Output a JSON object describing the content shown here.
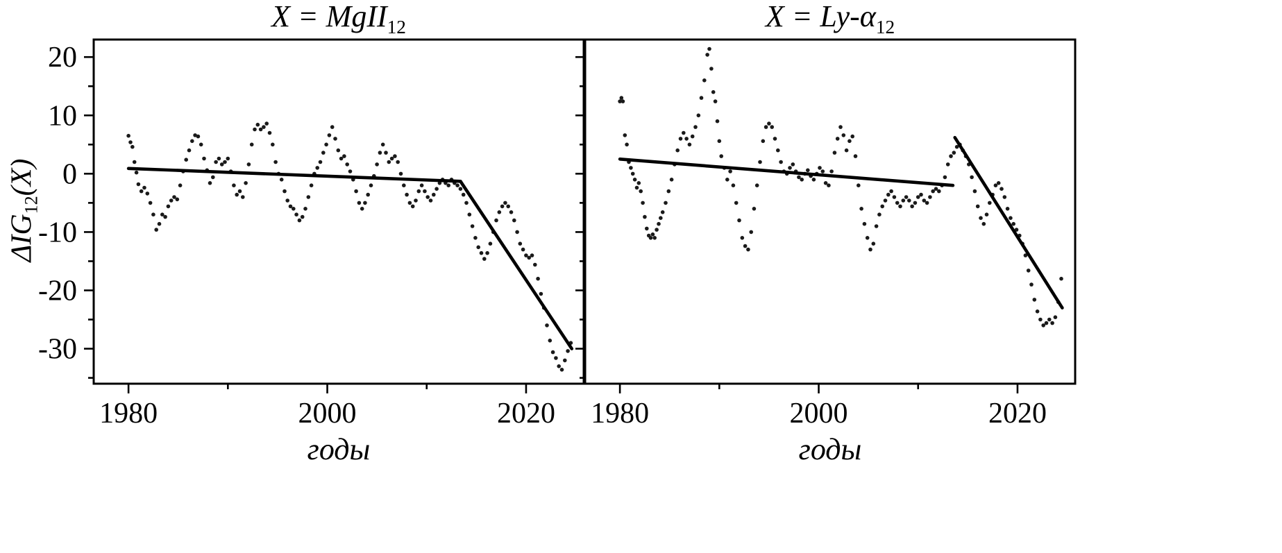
{
  "figure": {
    "background": "#ffffff",
    "axis_color": "#000000",
    "point_color": "#1a1a1a",
    "trend_color": "#000000",
    "ylabel": {
      "main": "ΔIG",
      "subscript": "12",
      "suffix": "(X)"
    }
  },
  "chart_data": [
    {
      "type": "scatter",
      "title": {
        "text": "X = MgII",
        "subscript": "12"
      },
      "xlabel": "годы",
      "ylabel": "ΔIG12(X)",
      "xlim": [
        1976.5,
        2025.8
      ],
      "ylim": [
        -36,
        23
      ],
      "xticks": [
        1980,
        2000,
        2020
      ],
      "xminor": [
        1990,
        2010
      ],
      "yticks": [
        -30,
        -20,
        -10,
        0,
        10,
        20
      ],
      "yminor": [
        -35,
        -25,
        -15,
        -5,
        5,
        15
      ],
      "show_ytick_labels": true,
      "grid": false,
      "legend": "none",
      "points": [
        [
          1980.0,
          6.5
        ],
        [
          1980.2,
          5.4
        ],
        [
          1980.4,
          4.6
        ],
        [
          1980.6,
          2.0
        ],
        [
          1980.8,
          0.2
        ],
        [
          1981.0,
          -1.8
        ],
        [
          1981.3,
          -3.0
        ],
        [
          1981.6,
          -2.4
        ],
        [
          1981.9,
          -3.4
        ],
        [
          1982.2,
          -5.0
        ],
        [
          1982.5,
          -7.0
        ],
        [
          1982.8,
          -9.6
        ],
        [
          1983.1,
          -8.6
        ],
        [
          1983.4,
          -7.0
        ],
        [
          1983.7,
          -7.4
        ],
        [
          1984.0,
          -5.6
        ],
        [
          1984.3,
          -4.6
        ],
        [
          1984.6,
          -4.0
        ],
        [
          1984.9,
          -4.4
        ],
        [
          1985.2,
          -2.0
        ],
        [
          1985.5,
          0.4
        ],
        [
          1985.8,
          2.4
        ],
        [
          1986.1,
          4.0
        ],
        [
          1986.4,
          5.6
        ],
        [
          1986.7,
          6.6
        ],
        [
          1987.0,
          6.4
        ],
        [
          1987.3,
          5.0
        ],
        [
          1987.6,
          2.6
        ],
        [
          1987.9,
          0.6
        ],
        [
          1988.2,
          -1.6
        ],
        [
          1988.5,
          -0.6
        ],
        [
          1988.8,
          2.0
        ],
        [
          1989.1,
          2.6
        ],
        [
          1989.4,
          1.6
        ],
        [
          1989.7,
          2.0
        ],
        [
          1990.0,
          2.6
        ],
        [
          1990.3,
          0.4
        ],
        [
          1990.6,
          -2.0
        ],
        [
          1990.9,
          -3.6
        ],
        [
          1991.2,
          -3.0
        ],
        [
          1991.5,
          -4.0
        ],
        [
          1991.8,
          -1.6
        ],
        [
          1992.1,
          1.6
        ],
        [
          1992.4,
          5.0
        ],
        [
          1992.7,
          7.6
        ],
        [
          1993.0,
          8.4
        ],
        [
          1993.3,
          7.6
        ],
        [
          1993.6,
          8.0
        ],
        [
          1993.9,
          8.6
        ],
        [
          1994.2,
          7.0
        ],
        [
          1994.5,
          5.0
        ],
        [
          1994.8,
          2.0
        ],
        [
          1995.1,
          0.0
        ],
        [
          1995.4,
          -1.0
        ],
        [
          1995.7,
          -3.0
        ],
        [
          1996.0,
          -4.6
        ],
        [
          1996.3,
          -5.6
        ],
        [
          1996.6,
          -6.0
        ],
        [
          1996.9,
          -7.0
        ],
        [
          1997.2,
          -8.0
        ],
        [
          1997.5,
          -7.4
        ],
        [
          1997.8,
          -6.0
        ],
        [
          1998.1,
          -4.0
        ],
        [
          1998.4,
          -2.0
        ],
        [
          1998.7,
          0.0
        ],
        [
          1999.0,
          1.0
        ],
        [
          1999.3,
          2.0
        ],
        [
          1999.6,
          3.6
        ],
        [
          1999.9,
          5.0
        ],
        [
          2000.2,
          6.6
        ],
        [
          2000.5,
          8.0
        ],
        [
          2000.8,
          6.0
        ],
        [
          2001.1,
          4.0
        ],
        [
          2001.4,
          2.6
        ],
        [
          2001.7,
          3.0
        ],
        [
          2002.0,
          1.6
        ],
        [
          2002.3,
          0.4
        ],
        [
          2002.6,
          -1.0
        ],
        [
          2002.9,
          -3.0
        ],
        [
          2003.2,
          -5.0
        ],
        [
          2003.5,
          -6.0
        ],
        [
          2003.8,
          -5.0
        ],
        [
          2004.1,
          -3.6
        ],
        [
          2004.4,
          -2.0
        ],
        [
          2004.7,
          -0.4
        ],
        [
          2005.0,
          1.6
        ],
        [
          2005.3,
          3.6
        ],
        [
          2005.6,
          5.0
        ],
        [
          2005.9,
          3.6
        ],
        [
          2006.2,
          2.0
        ],
        [
          2006.5,
          2.6
        ],
        [
          2006.8,
          3.0
        ],
        [
          2007.1,
          2.0
        ],
        [
          2007.4,
          0.0
        ],
        [
          2007.7,
          -2.0
        ],
        [
          2008.0,
          -3.6
        ],
        [
          2008.3,
          -5.0
        ],
        [
          2008.6,
          -5.6
        ],
        [
          2008.9,
          -4.6
        ],
        [
          2009.2,
          -3.0
        ],
        [
          2009.5,
          -2.0
        ],
        [
          2009.8,
          -3.0
        ],
        [
          2010.1,
          -4.0
        ],
        [
          2010.4,
          -4.6
        ],
        [
          2010.7,
          -3.6
        ],
        [
          2011.0,
          -2.6
        ],
        [
          2011.3,
          -1.6
        ],
        [
          2011.6,
          -1.0
        ],
        [
          2011.9,
          -1.6
        ],
        [
          2012.2,
          -2.0
        ],
        [
          2012.5,
          -1.0
        ],
        [
          2012.8,
          -1.6
        ],
        [
          2013.1,
          -2.0
        ],
        [
          2013.4,
          -2.6
        ],
        [
          2013.7,
          -3.6
        ],
        [
          2014.0,
          -5.0
        ],
        [
          2014.3,
          -7.0
        ],
        [
          2014.6,
          -9.0
        ],
        [
          2014.9,
          -11.0
        ],
        [
          2015.2,
          -12.6
        ],
        [
          2015.5,
          -13.6
        ],
        [
          2015.8,
          -14.6
        ],
        [
          2016.1,
          -13.6
        ],
        [
          2016.4,
          -12.0
        ],
        [
          2016.7,
          -10.0
        ],
        [
          2017.0,
          -8.0
        ],
        [
          2017.3,
          -6.6
        ],
        [
          2017.6,
          -5.6
        ],
        [
          2017.9,
          -5.0
        ],
        [
          2018.2,
          -5.6
        ],
        [
          2018.5,
          -6.6
        ],
        [
          2018.8,
          -8.0
        ],
        [
          2019.1,
          -10.0
        ],
        [
          2019.4,
          -12.0
        ],
        [
          2019.7,
          -13.0
        ],
        [
          2020.0,
          -14.0
        ],
        [
          2020.3,
          -14.4
        ],
        [
          2020.6,
          -14.0
        ],
        [
          2020.9,
          -15.6
        ],
        [
          2021.2,
          -18.0
        ],
        [
          2021.5,
          -20.6
        ],
        [
          2021.8,
          -23.0
        ],
        [
          2022.1,
          -26.0
        ],
        [
          2022.4,
          -28.6
        ],
        [
          2022.7,
          -30.6
        ],
        [
          2023.0,
          -31.6
        ],
        [
          2023.3,
          -33.0
        ],
        [
          2023.6,
          -33.6
        ],
        [
          2023.9,
          -32.0
        ],
        [
          2024.2,
          -30.4
        ],
        [
          2024.5,
          -29.0
        ]
      ],
      "trend_segments": [
        [
          [
            1980.0,
            0.9
          ],
          [
            2013.4,
            -1.3
          ]
        ],
        [
          [
            2013.4,
            -1.3
          ],
          [
            2024.6,
            -30.0
          ]
        ]
      ]
    },
    {
      "type": "scatter",
      "title": {
        "text": "X = Ly-α",
        "subscript": "12"
      },
      "xlabel": "годы",
      "ylabel": "ΔIG12(X)",
      "xlim": [
        1976.5,
        2025.8
      ],
      "ylim": [
        -36,
        23
      ],
      "xticks": [
        1980,
        2000,
        2020
      ],
      "xminor": [
        1990,
        2010
      ],
      "yticks": [
        -30,
        -20,
        -10,
        0,
        10,
        20
      ],
      "yminor": [
        -35,
        -25,
        -15,
        -5,
        5,
        15
      ],
      "show_ytick_labels": false,
      "grid": false,
      "legend": "none",
      "points": [
        [
          1980.0,
          12.4
        ],
        [
          1980.15,
          13.0
        ],
        [
          1980.3,
          12.4
        ],
        [
          1980.5,
          6.6
        ],
        [
          1980.7,
          5.0
        ],
        [
          1980.9,
          2.0
        ],
        [
          1981.1,
          1.0
        ],
        [
          1981.3,
          0.0
        ],
        [
          1981.5,
          -1.0
        ],
        [
          1981.7,
          -2.4
        ],
        [
          1981.9,
          -1.6
        ],
        [
          1982.1,
          -3.0
        ],
        [
          1982.3,
          -5.0
        ],
        [
          1982.5,
          -7.4
        ],
        [
          1982.7,
          -9.4
        ],
        [
          1982.9,
          -10.6
        ],
        [
          1983.1,
          -11.0
        ],
        [
          1983.3,
          -10.4
        ],
        [
          1983.5,
          -11.0
        ],
        [
          1983.7,
          -9.6
        ],
        [
          1983.9,
          -8.6
        ],
        [
          1984.1,
          -7.6
        ],
        [
          1984.3,
          -6.6
        ],
        [
          1984.6,
          -5.0
        ],
        [
          1984.9,
          -3.0
        ],
        [
          1985.2,
          -1.0
        ],
        [
          1985.5,
          1.6
        ],
        [
          1985.8,
          4.0
        ],
        [
          1986.1,
          6.0
        ],
        [
          1986.4,
          7.0
        ],
        [
          1986.7,
          6.0
        ],
        [
          1987.0,
          5.0
        ],
        [
          1987.3,
          6.4
        ],
        [
          1987.6,
          8.0
        ],
        [
          1987.9,
          10.0
        ],
        [
          1988.2,
          13.0
        ],
        [
          1988.5,
          16.0
        ],
        [
          1988.8,
          20.4
        ],
        [
          1989.0,
          21.4
        ],
        [
          1989.2,
          18.0
        ],
        [
          1989.4,
          14.0
        ],
        [
          1989.6,
          12.4
        ],
        [
          1989.8,
          9.0
        ],
        [
          1990.0,
          5.6
        ],
        [
          1990.2,
          3.0
        ],
        [
          1990.5,
          1.0
        ],
        [
          1990.8,
          -1.0
        ],
        [
          1991.1,
          0.4
        ],
        [
          1991.4,
          -2.0
        ],
        [
          1991.7,
          -5.0
        ],
        [
          1992.0,
          -8.0
        ],
        [
          1992.3,
          -11.0
        ],
        [
          1992.6,
          -12.4
        ],
        [
          1992.9,
          -13.0
        ],
        [
          1993.2,
          -10.0
        ],
        [
          1993.5,
          -6.0
        ],
        [
          1993.8,
          -2.0
        ],
        [
          1994.1,
          2.0
        ],
        [
          1994.4,
          5.6
        ],
        [
          1994.7,
          8.0
        ],
        [
          1995.0,
          8.6
        ],
        [
          1995.3,
          8.0
        ],
        [
          1995.6,
          6.0
        ],
        [
          1995.9,
          4.0
        ],
        [
          1996.2,
          2.0
        ],
        [
          1996.5,
          0.4
        ],
        [
          1996.8,
          0.0
        ],
        [
          1997.1,
          1.0
        ],
        [
          1997.4,
          1.6
        ],
        [
          1997.7,
          0.4
        ],
        [
          1998.0,
          -0.6
        ],
        [
          1998.3,
          -1.0
        ],
        [
          1998.6,
          0.0
        ],
        [
          1998.9,
          0.6
        ],
        [
          1999.2,
          -0.4
        ],
        [
          1999.5,
          -1.0
        ],
        [
          1999.8,
          0.0
        ],
        [
          2000.1,
          1.0
        ],
        [
          2000.4,
          0.4
        ],
        [
          2000.7,
          -1.6
        ],
        [
          2001.0,
          -2.0
        ],
        [
          2001.3,
          0.4
        ],
        [
          2001.6,
          3.6
        ],
        [
          2001.9,
          6.0
        ],
        [
          2002.2,
          8.0
        ],
        [
          2002.5,
          6.6
        ],
        [
          2002.8,
          4.0
        ],
        [
          2003.1,
          5.6
        ],
        [
          2003.4,
          6.4
        ],
        [
          2003.7,
          3.0
        ],
        [
          2004.0,
          -2.0
        ],
        [
          2004.3,
          -6.0
        ],
        [
          2004.6,
          -8.6
        ],
        [
          2004.9,
          -11.0
        ],
        [
          2005.2,
          -13.0
        ],
        [
          2005.5,
          -12.0
        ],
        [
          2005.8,
          -9.0
        ],
        [
          2006.1,
          -7.0
        ],
        [
          2006.4,
          -5.6
        ],
        [
          2006.7,
          -4.6
        ],
        [
          2007.0,
          -3.6
        ],
        [
          2007.3,
          -3.0
        ],
        [
          2007.6,
          -4.0
        ],
        [
          2007.9,
          -5.0
        ],
        [
          2008.2,
          -5.6
        ],
        [
          2008.5,
          -4.6
        ],
        [
          2008.8,
          -4.0
        ],
        [
          2009.1,
          -4.6
        ],
        [
          2009.4,
          -5.6
        ],
        [
          2009.7,
          -5.0
        ],
        [
          2010.0,
          -4.0
        ],
        [
          2010.3,
          -3.6
        ],
        [
          2010.6,
          -4.6
        ],
        [
          2010.9,
          -5.0
        ],
        [
          2011.2,
          -4.0
        ],
        [
          2011.5,
          -3.0
        ],
        [
          2011.8,
          -2.6
        ],
        [
          2012.1,
          -3.0
        ],
        [
          2012.4,
          -2.0
        ],
        [
          2012.7,
          -0.6
        ],
        [
          2013.0,
          1.6
        ],
        [
          2013.3,
          3.0
        ],
        [
          2013.6,
          3.6
        ],
        [
          2013.9,
          4.6
        ],
        [
          2014.2,
          5.0
        ],
        [
          2014.5,
          4.0
        ],
        [
          2014.8,
          3.0
        ],
        [
          2015.1,
          1.6
        ],
        [
          2015.4,
          -0.6
        ],
        [
          2015.7,
          -3.0
        ],
        [
          2016.0,
          -5.6
        ],
        [
          2016.3,
          -7.6
        ],
        [
          2016.6,
          -8.6
        ],
        [
          2016.9,
          -7.0
        ],
        [
          2017.2,
          -5.0
        ],
        [
          2017.5,
          -3.6
        ],
        [
          2017.8,
          -2.0
        ],
        [
          2018.1,
          -1.6
        ],
        [
          2018.4,
          -2.6
        ],
        [
          2018.7,
          -4.0
        ],
        [
          2019.0,
          -6.0
        ],
        [
          2019.3,
          -7.6
        ],
        [
          2019.6,
          -8.6
        ],
        [
          2019.9,
          -9.6
        ],
        [
          2020.2,
          -10.6
        ],
        [
          2020.5,
          -12.0
        ],
        [
          2020.8,
          -14.0
        ],
        [
          2021.1,
          -16.6
        ],
        [
          2021.4,
          -19.0
        ],
        [
          2021.7,
          -21.6
        ],
        [
          2022.0,
          -23.6
        ],
        [
          2022.3,
          -25.0
        ],
        [
          2022.6,
          -26.0
        ],
        [
          2022.9,
          -25.6
        ],
        [
          2023.2,
          -25.0
        ],
        [
          2023.5,
          -25.6
        ],
        [
          2023.8,
          -24.6
        ],
        [
          2024.1,
          -22.0
        ],
        [
          2024.4,
          -18.0
        ]
      ],
      "trend_segments": [
        [
          [
            1980.0,
            2.5
          ],
          [
            2013.5,
            -2.0
          ]
        ],
        [
          [
            2013.7,
            6.2
          ],
          [
            2024.5,
            -23.0
          ]
        ]
      ]
    }
  ]
}
